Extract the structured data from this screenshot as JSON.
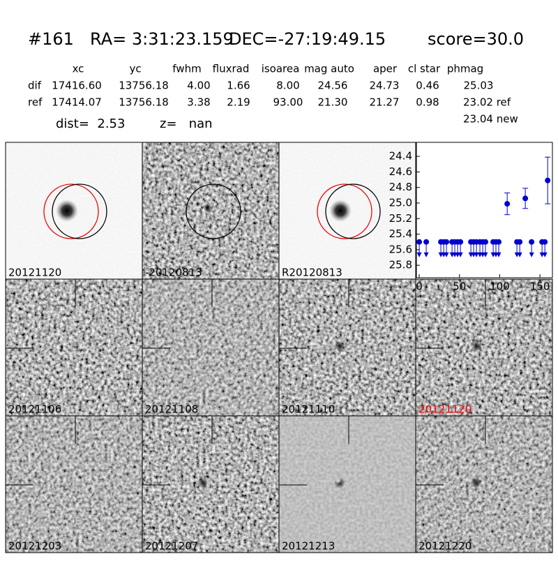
{
  "header": {
    "id": "#161",
    "ra": "RA= 3:31:23.159",
    "dec": "DEC=-27:19:49.15",
    "score": "score=30.0"
  },
  "table": {
    "columns": [
      "xc",
      "yc",
      "fwhm",
      "fluxrad",
      "isoarea",
      "mag auto",
      "aper",
      "cl star",
      "phmag"
    ],
    "rows": [
      {
        "label": "dif",
        "cells": [
          "17416.60",
          "13756.18",
          "4.00",
          "1.66",
          "8.00",
          "24.56",
          "24.73",
          "0.46",
          "25.03"
        ]
      },
      {
        "label": "ref",
        "cells": [
          "17414.07",
          "13756.18",
          "3.38",
          "2.19",
          "93.00",
          "21.30",
          "21.27",
          "0.98",
          "23.02 ref"
        ]
      }
    ],
    "extra": "23.04 new"
  },
  "dist": "dist=  2.53",
  "z": "z=   nan",
  "panels": [
    {
      "label": "20121120",
      "color": "#000000"
    },
    {
      "label": "-20120813",
      "color": "#000000"
    },
    {
      "label": "R20120813",
      "color": "#000000"
    },
    {
      "label": "20121106",
      "color": "#000000"
    },
    {
      "label": "20121108",
      "color": "#000000"
    },
    {
      "label": "20121110",
      "color": "#000000"
    },
    {
      "label": "20121120",
      "color": "#ff0000"
    },
    {
      "label": "20121203",
      "color": "#000000"
    },
    {
      "label": "20121207",
      "color": "#000000"
    },
    {
      "label": "20121213",
      "color": "#000000"
    },
    {
      "label": "20121220",
      "color": "#000000"
    }
  ],
  "light_curve": {
    "color": "#0000cc",
    "xlim": [
      -3.5,
      165.5
    ],
    "ylim": [
      25.96,
      24.22
    ],
    "xticks": [
      0,
      50,
      100,
      150
    ],
    "yticks": [
      24.4,
      24.6,
      24.8,
      {
        "value": 25,
        "label": "25.0"
      },
      25.2,
      25.4,
      25.6,
      25.8
    ],
    "x": [
      109.3,
      131.8,
      159.6
    ],
    "values": [
      25.01,
      24.94,
      24.71
    ],
    "errors": [
      0.14,
      0.13,
      0.3
    ],
    "limits": {
      "x": [
        0,
        8.7,
        26.9,
        30.4,
        33.8,
        40.8,
        44.2,
        47.7,
        51.2,
        64.2,
        67.6,
        71.1,
        75.4,
        78.9,
        82.3,
        91.9,
        95.3,
        98.8,
        121.4,
        124.9,
        139.6,
        152.6,
        156.1
      ],
      "values": [
        25.5,
        25.5,
        25.5,
        25.5,
        25.5,
        25.5,
        25.5,
        25.5,
        25.5,
        25.5,
        25.5,
        25.5,
        25.5,
        25.5,
        25.5,
        25.5,
        25.5,
        25.5,
        25.5,
        25.5,
        25.5,
        25.5,
        25.5
      ]
    }
  }
}
